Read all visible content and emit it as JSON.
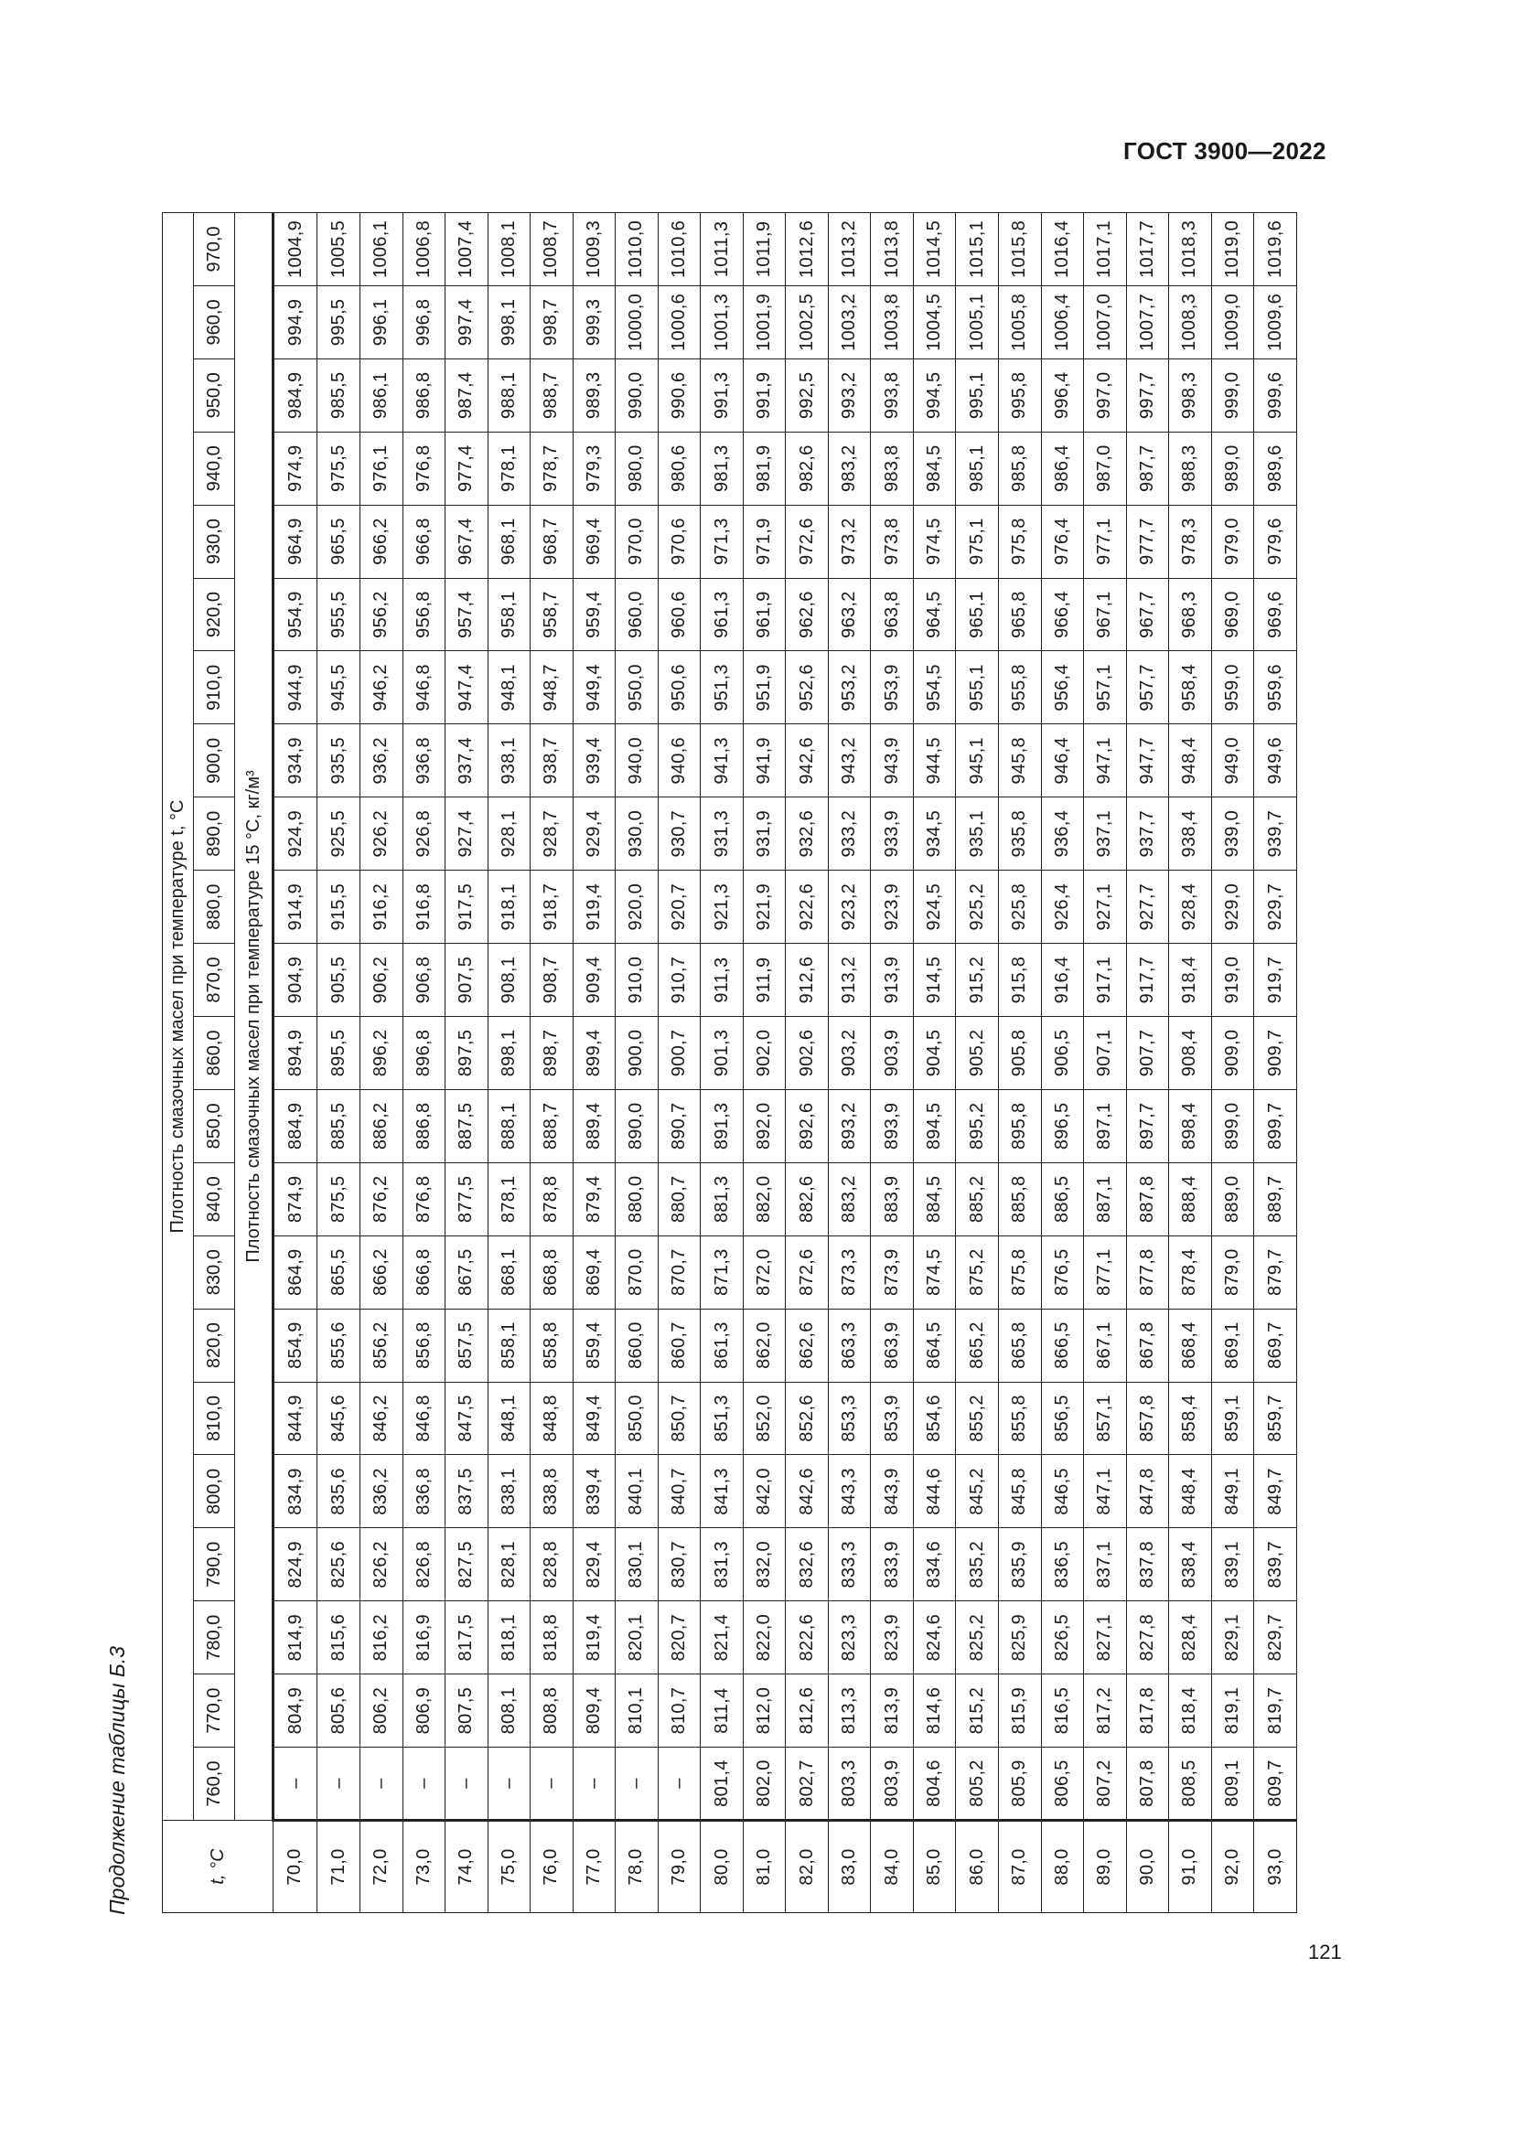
{
  "header": {
    "doc_id": "ГОСТ 3900—2022"
  },
  "caption": "Продолжение таблицы Б.3",
  "page_number": "121",
  "table": {
    "t_header": "t, °С",
    "group_header": "Плотность смазочных масел при температуре t, °С",
    "sub_header": "Плотность смазочных масел при температуре 15 °С, кг/м³",
    "columns": [
      "760,0",
      "770,0",
      "780,0",
      "790,0",
      "800,0",
      "810,0",
      "820,0",
      "830,0",
      "840,0",
      "850,0",
      "860,0",
      "870,0",
      "880,0",
      "890,0",
      "900,0",
      "910,0",
      "920,0",
      "930,0",
      "940,0",
      "950,0",
      "960,0",
      "970,0"
    ],
    "rows": [
      {
        "t": "70,0",
        "v": [
          "–",
          "804,9",
          "814,9",
          "824,9",
          "834,9",
          "844,9",
          "854,9",
          "864,9",
          "874,9",
          "884,9",
          "894,9",
          "904,9",
          "914,9",
          "924,9",
          "934,9",
          "944,9",
          "954,9",
          "964,9",
          "974,9",
          "984,9",
          "994,9",
          "1004,9"
        ]
      },
      {
        "t": "71,0",
        "v": [
          "–",
          "805,6",
          "815,6",
          "825,6",
          "835,6",
          "845,6",
          "855,6",
          "865,5",
          "875,5",
          "885,5",
          "895,5",
          "905,5",
          "915,5",
          "925,5",
          "935,5",
          "945,5",
          "955,5",
          "965,5",
          "975,5",
          "985,5",
          "995,5",
          "1005,5"
        ]
      },
      {
        "t": "72,0",
        "v": [
          "–",
          "806,2",
          "816,2",
          "826,2",
          "836,2",
          "846,2",
          "856,2",
          "866,2",
          "876,2",
          "886,2",
          "896,2",
          "906,2",
          "916,2",
          "926,2",
          "936,2",
          "946,2",
          "956,2",
          "966,2",
          "976,1",
          "986,1",
          "996,1",
          "1006,1"
        ]
      },
      {
        "t": "73,0",
        "v": [
          "–",
          "806,9",
          "816,9",
          "826,8",
          "836,8",
          "846,8",
          "856,8",
          "866,8",
          "876,8",
          "886,8",
          "896,8",
          "906,8",
          "916,8",
          "926,8",
          "936,8",
          "946,8",
          "956,8",
          "966,8",
          "976,8",
          "986,8",
          "996,8",
          "1006,8"
        ]
      },
      {
        "t": "74,0",
        "v": [
          "–",
          "807,5",
          "817,5",
          "827,5",
          "837,5",
          "847,5",
          "857,5",
          "867,5",
          "877,5",
          "887,5",
          "897,5",
          "907,5",
          "917,5",
          "927,4",
          "937,4",
          "947,4",
          "957,4",
          "967,4",
          "977,4",
          "987,4",
          "997,4",
          "1007,4"
        ]
      },
      {
        "t": "75,0",
        "v": [
          "–",
          "808,1",
          "818,1",
          "828,1",
          "838,1",
          "848,1",
          "858,1",
          "868,1",
          "878,1",
          "888,1",
          "898,1",
          "908,1",
          "918,1",
          "928,1",
          "938,1",
          "948,1",
          "958,1",
          "968,1",
          "978,1",
          "988,1",
          "998,1",
          "1008,1"
        ]
      },
      {
        "t": "76,0",
        "v": [
          "–",
          "808,8",
          "818,8",
          "828,8",
          "838,8",
          "848,8",
          "858,8",
          "868,8",
          "878,8",
          "888,7",
          "898,7",
          "908,7",
          "918,7",
          "928,7",
          "938,7",
          "948,7",
          "958,7",
          "968,7",
          "978,7",
          "988,7",
          "998,7",
          "1008,7"
        ]
      },
      {
        "t": "77,0",
        "v": [
          "–",
          "809,4",
          "819,4",
          "829,4",
          "839,4",
          "849,4",
          "859,4",
          "869,4",
          "879,4",
          "889,4",
          "899,4",
          "909,4",
          "919,4",
          "929,4",
          "939,4",
          "949,4",
          "959,4",
          "969,4",
          "979,3",
          "989,3",
          "999,3",
          "1009,3"
        ]
      },
      {
        "t": "78,0",
        "v": [
          "–",
          "810,1",
          "820,1",
          "830,1",
          "840,1",
          "850,0",
          "860,0",
          "870,0",
          "880,0",
          "890,0",
          "900,0",
          "910,0",
          "920,0",
          "930,0",
          "940,0",
          "950,0",
          "960,0",
          "970,0",
          "980,0",
          "990,0",
          "1000,0",
          "1010,0"
        ]
      },
      {
        "t": "79,0",
        "v": [
          "–",
          "810,7",
          "820,7",
          "830,7",
          "840,7",
          "850,7",
          "860,7",
          "870,7",
          "880,7",
          "890,7",
          "900,7",
          "910,7",
          "920,7",
          "930,7",
          "940,6",
          "950,6",
          "960,6",
          "970,6",
          "980,6",
          "990,6",
          "1000,6",
          "1010,6"
        ]
      },
      {
        "t": "80,0",
        "v": [
          "801,4",
          "811,4",
          "821,4",
          "831,3",
          "841,3",
          "851,3",
          "861,3",
          "871,3",
          "881,3",
          "891,3",
          "901,3",
          "911,3",
          "921,3",
          "931,3",
          "941,3",
          "951,3",
          "961,3",
          "971,3",
          "981,3",
          "991,3",
          "1001,3",
          "1011,3"
        ]
      },
      {
        "t": "81,0",
        "v": [
          "802,0",
          "812,0",
          "822,0",
          "832,0",
          "842,0",
          "852,0",
          "862,0",
          "872,0",
          "882,0",
          "892,0",
          "902,0",
          "911,9",
          "921,9",
          "931,9",
          "941,9",
          "951,9",
          "961,9",
          "971,9",
          "981,9",
          "991,9",
          "1001,9",
          "1011,9"
        ]
      },
      {
        "t": "82,0",
        "v": [
          "802,7",
          "812,6",
          "822,6",
          "832,6",
          "842,6",
          "852,6",
          "862,6",
          "872,6",
          "882,6",
          "892,6",
          "902,6",
          "912,6",
          "922,6",
          "932,6",
          "942,6",
          "952,6",
          "962,6",
          "972,6",
          "982,6",
          "992,5",
          "1002,5",
          "1012,6"
        ]
      },
      {
        "t": "83,0",
        "v": [
          "803,3",
          "813,3",
          "823,3",
          "833,3",
          "843,3",
          "853,3",
          "863,3",
          "873,3",
          "883,2",
          "893,2",
          "903,2",
          "913,2",
          "923,2",
          "933,2",
          "943,2",
          "953,2",
          "963,2",
          "973,2",
          "983,2",
          "993,2",
          "1003,2",
          "1013,2"
        ]
      },
      {
        "t": "84,0",
        "v": [
          "803,9",
          "813,9",
          "823,9",
          "833,9",
          "843,9",
          "853,9",
          "863,9",
          "873,9",
          "883,9",
          "893,9",
          "903,9",
          "913,9",
          "923,9",
          "933,9",
          "943,9",
          "953,9",
          "963,8",
          "973,8",
          "983,8",
          "993,8",
          "1003,8",
          "1013,8"
        ]
      },
      {
        "t": "85,0",
        "v": [
          "804,6",
          "814,6",
          "824,6",
          "834,6",
          "844,6",
          "854,6",
          "864,5",
          "874,5",
          "884,5",
          "894,5",
          "904,5",
          "914,5",
          "924,5",
          "934,5",
          "944,5",
          "954,5",
          "964,5",
          "974,5",
          "984,5",
          "994,5",
          "1004,5",
          "1014,5"
        ]
      },
      {
        "t": "86,0",
        "v": [
          "805,2",
          "815,2",
          "825,2",
          "835,2",
          "845,2",
          "855,2",
          "865,2",
          "875,2",
          "885,2",
          "895,2",
          "905,2",
          "915,2",
          "925,2",
          "935,1",
          "945,1",
          "955,1",
          "965,1",
          "975,1",
          "985,1",
          "995,1",
          "1005,1",
          "1015,1"
        ]
      },
      {
        "t": "87,0",
        "v": [
          "805,9",
          "815,9",
          "825,9",
          "835,9",
          "845,8",
          "855,8",
          "865,8",
          "875,8",
          "885,8",
          "895,8",
          "905,8",
          "915,8",
          "925,8",
          "935,8",
          "945,8",
          "955,8",
          "965,8",
          "975,8",
          "985,8",
          "995,8",
          "1005,8",
          "1015,8"
        ]
      },
      {
        "t": "88,0",
        "v": [
          "806,5",
          "816,5",
          "826,5",
          "836,5",
          "846,5",
          "856,5",
          "866,5",
          "876,5",
          "886,5",
          "896,5",
          "906,5",
          "916,4",
          "926,4",
          "936,4",
          "946,4",
          "956,4",
          "966,4",
          "976,4",
          "986,4",
          "996,4",
          "1006,4",
          "1016,4"
        ]
      },
      {
        "t": "89,0",
        "v": [
          "807,2",
          "817,2",
          "827,1",
          "837,1",
          "847,1",
          "857,1",
          "867,1",
          "877,1",
          "887,1",
          "897,1",
          "907,1",
          "917,1",
          "927,1",
          "937,1",
          "947,1",
          "957,1",
          "967,1",
          "977,1",
          "987,0",
          "997,0",
          "1007,0",
          "1017,1"
        ]
      },
      {
        "t": "90,0",
        "v": [
          "807,8",
          "817,8",
          "827,8",
          "837,8",
          "847,8",
          "857,8",
          "867,8",
          "877,8",
          "887,8",
          "897,7",
          "907,7",
          "917,7",
          "927,7",
          "937,7",
          "947,7",
          "957,7",
          "967,7",
          "977,7",
          "987,7",
          "997,7",
          "1007,7",
          "1017,7"
        ]
      },
      {
        "t": "91,0",
        "v": [
          "808,5",
          "818,4",
          "828,4",
          "838,4",
          "848,4",
          "858,4",
          "868,4",
          "878,4",
          "888,4",
          "898,4",
          "908,4",
          "918,4",
          "928,4",
          "938,4",
          "948,4",
          "958,4",
          "968,3",
          "978,3",
          "988,3",
          "998,3",
          "1008,3",
          "1018,3"
        ]
      },
      {
        "t": "92,0",
        "v": [
          "809,1",
          "819,1",
          "829,1",
          "839,1",
          "849,1",
          "859,1",
          "869,1",
          "879,0",
          "889,0",
          "899,0",
          "909,0",
          "919,0",
          "929,0",
          "939,0",
          "949,0",
          "959,0",
          "969,0",
          "979,0",
          "989,0",
          "999,0",
          "1009,0",
          "1019,0"
        ]
      },
      {
        "t": "93,0",
        "v": [
          "809,7",
          "819,7",
          "829,7",
          "839,7",
          "849,7",
          "859,7",
          "869,7",
          "879,7",
          "889,7",
          "899,7",
          "909,7",
          "919,7",
          "929,7",
          "939,7",
          "949,6",
          "959,6",
          "969,6",
          "979,6",
          "989,6",
          "999,6",
          "1009,6",
          "1019,6"
        ]
      }
    ]
  }
}
